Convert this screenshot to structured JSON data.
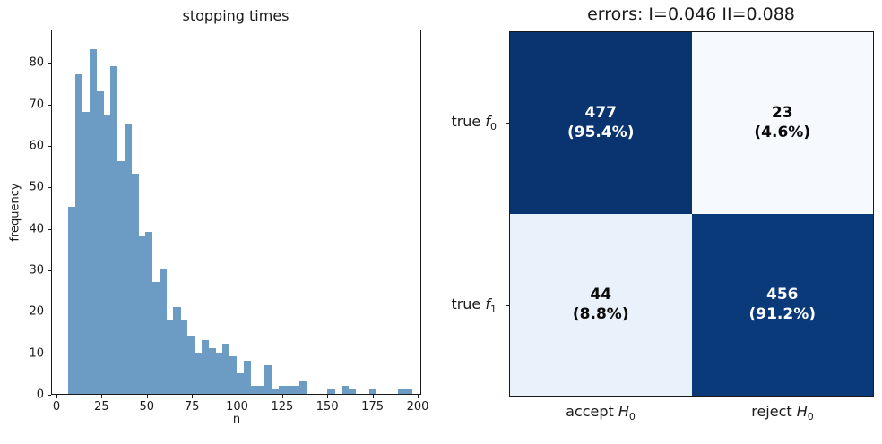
{
  "figure": {
    "background": "#ffffff"
  },
  "chart_data": [
    {
      "type": "bar",
      "title": "stopping times",
      "xlabel": "n",
      "ylabel": "frequency",
      "bar_color": "#6c9cc4",
      "grid": false,
      "legend": null,
      "xlim": [
        -3,
        202
      ],
      "ylim": [
        0,
        88
      ],
      "xticks": [
        "0",
        "25",
        "50",
        "75",
        "100",
        "125",
        "150",
        "175",
        "200"
      ],
      "xtick_values": [
        0,
        25,
        50,
        75,
        100,
        125,
        150,
        175,
        200
      ],
      "yticks": [
        "0",
        "10",
        "20",
        "30",
        "40",
        "50",
        "60",
        "70",
        "80"
      ],
      "ytick_values": [
        0,
        10,
        20,
        30,
        40,
        50,
        60,
        70,
        80
      ],
      "bin_start": 6,
      "bin_width": 3.88,
      "frequencies": [
        45,
        77,
        68,
        83,
        73,
        67,
        79,
        56,
        65,
        53,
        38,
        39,
        27,
        30,
        18,
        21,
        18,
        14,
        10,
        13,
        11,
        10,
        12,
        9,
        5,
        8,
        2,
        2,
        7,
        1,
        2,
        2,
        2,
        3,
        0,
        0,
        0,
        1,
        0,
        2,
        1,
        0,
        0,
        1,
        0,
        0,
        0,
        1,
        1,
        0
      ]
    },
    {
      "type": "heatmap",
      "title": "errors: I=0.046 II=0.088",
      "colormap": "Blues",
      "row_labels": [
        {
          "prefix": "true ",
          "var": "f",
          "sub": "0"
        },
        {
          "prefix": "true ",
          "var": "f",
          "sub": "1"
        }
      ],
      "col_labels": [
        {
          "prefix": "accept ",
          "var": "H",
          "sub": "0"
        },
        {
          "prefix": "reject ",
          "var": "H",
          "sub": "0"
        }
      ],
      "cells": [
        [
          {
            "count": "477",
            "pct": "(95.4%)",
            "bg": "#0a3470",
            "fg": "#ffffff"
          },
          {
            "count": "23",
            "pct": "(4.6%)",
            "bg": "#f6fafe",
            "fg": "#0a0a0a"
          }
        ],
        [
          {
            "count": "44",
            "pct": "(8.8%)",
            "bg": "#e9f1fa",
            "fg": "#0a0a0a"
          },
          {
            "count": "456",
            "pct": "(91.2%)",
            "bg": "#0b3a7a",
            "fg": "#ffffff"
          }
        ]
      ]
    }
  ]
}
